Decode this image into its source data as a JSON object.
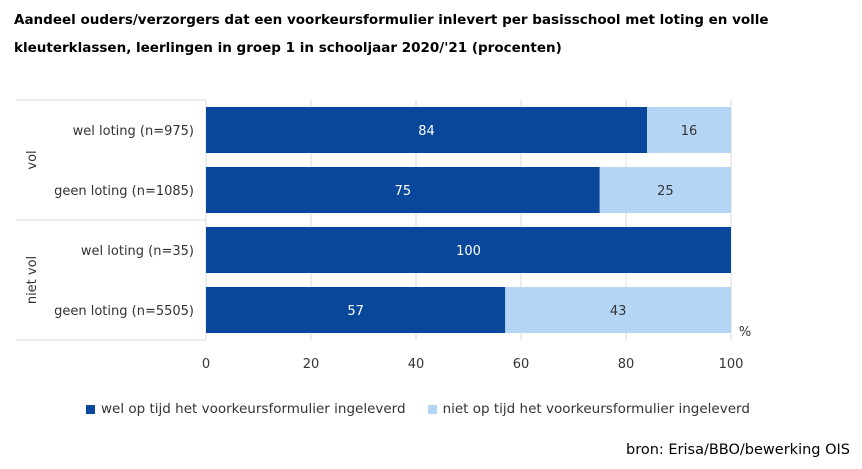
{
  "title_line1": "Aandeel ouders/verzorgers dat een voorkeursformulier inlevert per basisschool met loting en volle",
  "title_line2": "kleuterklassen, leerlingen in groep 1 in schooljaar 2020/'21 (procenten)",
  "source": "bron: Erisa/BBO/bewerking OIS",
  "colors": {
    "dark": "#08479a",
    "light": "#b4d6f4",
    "grid": "#d9d9d9",
    "axis_text": "#333333"
  },
  "chart_data": {
    "type": "bar",
    "orientation": "horizontal",
    "stacked": true,
    "groups": [
      {
        "label": "vol",
        "categories": [
          "wel loting (n=975)",
          "geen loting (n=1085)"
        ]
      },
      {
        "label": "niet vol",
        "categories": [
          "wel loting (n=35)",
          "geen loting (n=5505)"
        ]
      }
    ],
    "categories": [
      "wel loting (n=975)",
      "geen loting (n=1085)",
      "wel loting (n=35)",
      "geen loting (n=5505)"
    ],
    "series": [
      {
        "name": "wel op tijd het voorkeursformulier ingeleverd",
        "values": [
          84,
          75,
          100,
          57
        ]
      },
      {
        "name": "niet op tijd het voorkeursformulier ingeleverd",
        "values": [
          16,
          25,
          0,
          43
        ]
      }
    ],
    "xlim": [
      0,
      100
    ],
    "xticks": [
      "0",
      "20",
      "40",
      "60",
      "80",
      "100"
    ],
    "xunit": "%",
    "grid": true,
    "legend_position": "bottom"
  }
}
